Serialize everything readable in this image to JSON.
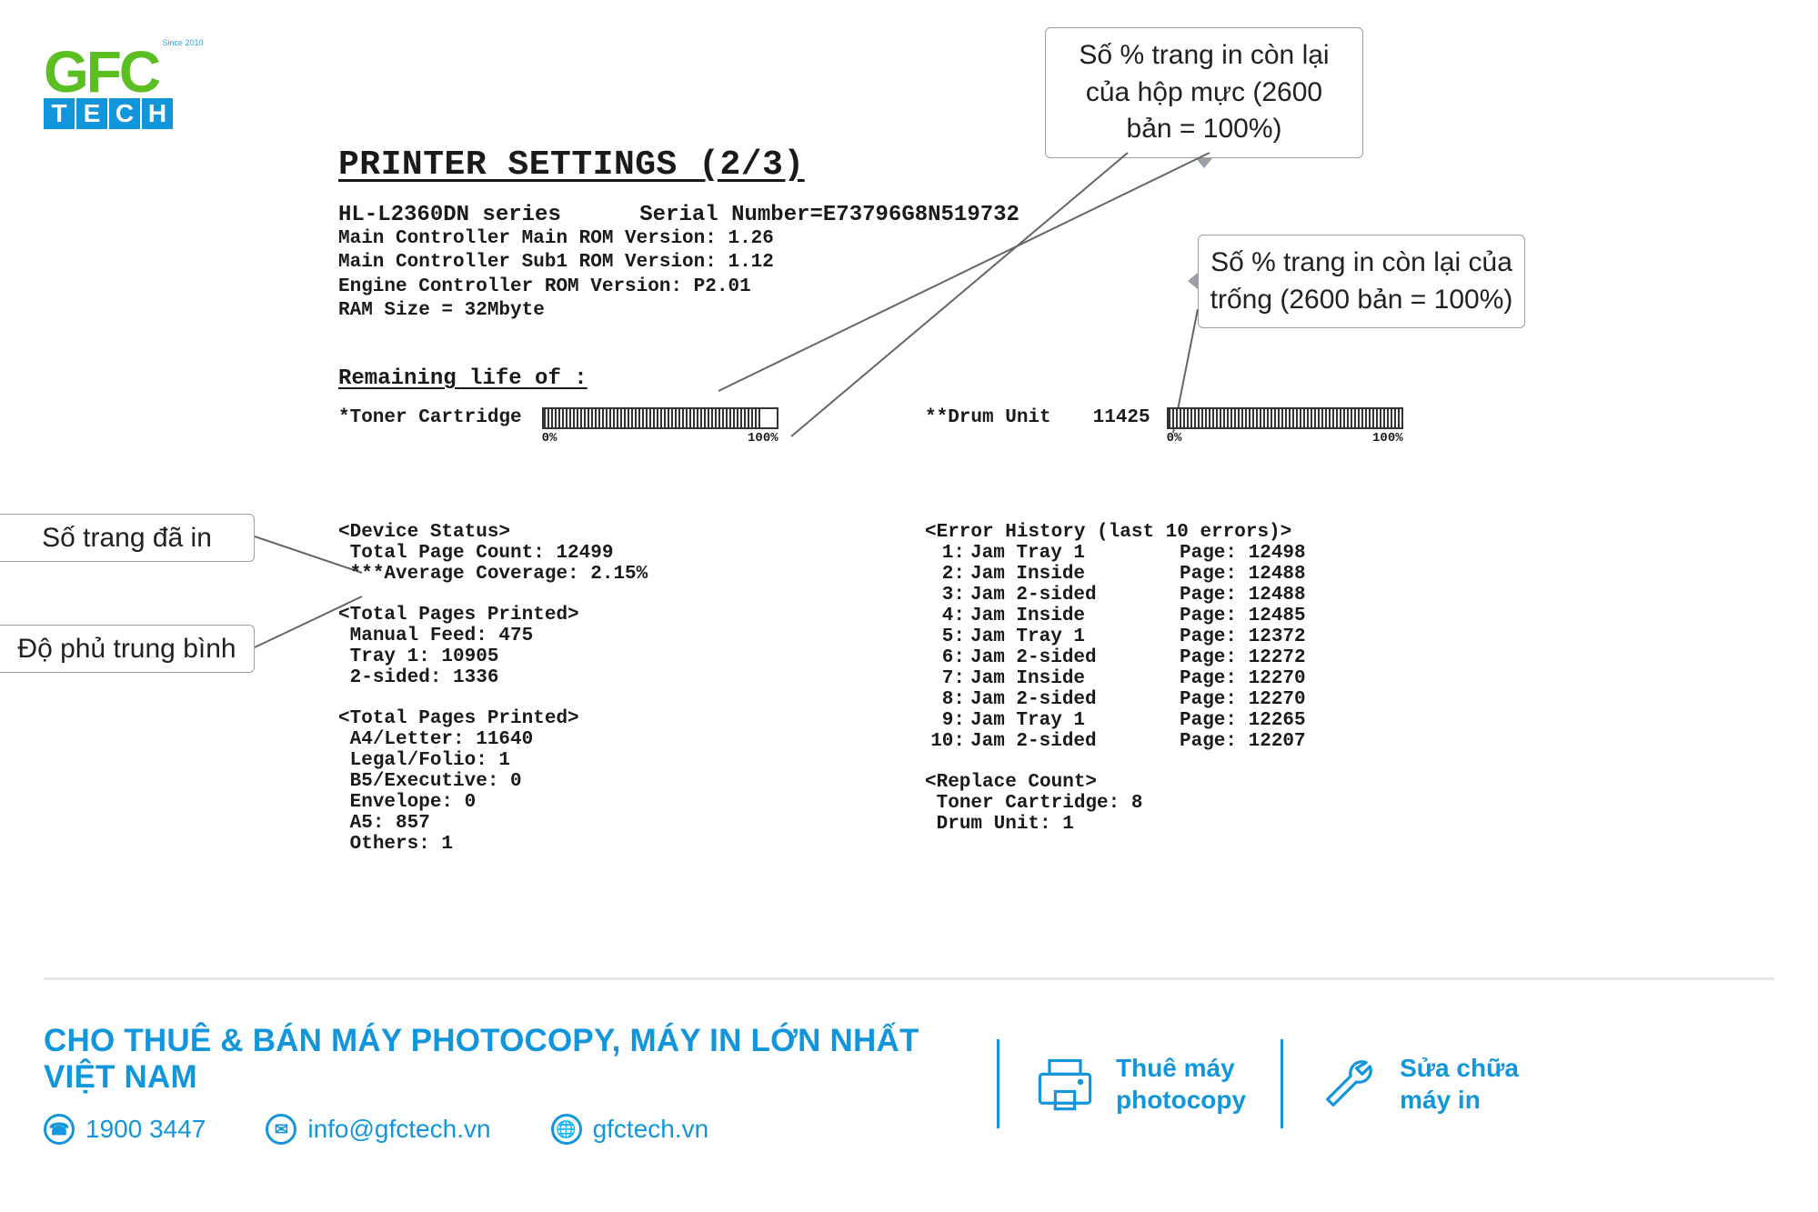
{
  "logo": {
    "since": "Since 2010",
    "tech": [
      "T",
      "E",
      "C",
      "H"
    ]
  },
  "callouts": {
    "toner": "Số % trang in còn lại của hộp mực (2600 bản = 100%)",
    "drum": "Số % trang in còn lại của trống (2600 bản = 100%)",
    "pages": "Số trang đã in",
    "cov": "Độ phủ trung bình"
  },
  "sheet": {
    "title": "PRINTER SETTINGS (2/3)",
    "model": "HL-L2360DN series",
    "serial_label": "Serial Number=",
    "serial": "E73796G8N519732",
    "fw": [
      "Main Controller Main ROM Version: 1.26",
      "Main Controller Sub1 ROM Version: 1.12",
      "Engine Controller ROM Version: P2.01",
      "RAM Size =  32Mbyte"
    ],
    "remaining_title": "Remaining life of :",
    "toner_label": "*Toner Cartridge",
    "drum_label": "**Drum Unit",
    "drum_pages": "11425",
    "toner_pct": 93,
    "drum_pct": 100,
    "tick0": "0%",
    "tick100": "100%",
    "dev_status_title": "<Device Status>",
    "dev_status": [
      "Total Page Count: 12499",
      "***Average Coverage: 2.15%"
    ],
    "tpp1_title": "<Total Pages Printed>",
    "tpp1": [
      "Manual Feed: 475",
      "Tray 1: 10905",
      "2-sided: 1336"
    ],
    "tpp2_title": "<Total Pages Printed>",
    "tpp2": [
      "A4/Letter: 11640",
      "Legal/Folio: 1",
      "B5/Executive: 0",
      "Envelope: 0",
      "A5: 857",
      "Others: 1"
    ],
    "err_title": "<Error History (last 10 errors)>",
    "errors": [
      {
        "n": "1:",
        "d": "Jam Tray 1",
        "p": "Page: 12498"
      },
      {
        "n": "2:",
        "d": "Jam Inside",
        "p": "Page: 12488"
      },
      {
        "n": "3:",
        "d": "Jam 2-sided",
        "p": "Page: 12488"
      },
      {
        "n": "4:",
        "d": "Jam Inside",
        "p": "Page: 12485"
      },
      {
        "n": "5:",
        "d": "Jam Tray 1",
        "p": "Page: 12372"
      },
      {
        "n": "6:",
        "d": "Jam 2-sided",
        "p": "Page: 12272"
      },
      {
        "n": "7:",
        "d": "Jam Inside",
        "p": "Page: 12270"
      },
      {
        "n": "8:",
        "d": "Jam 2-sided",
        "p": "Page: 12270"
      },
      {
        "n": "9:",
        "d": "Jam Tray 1",
        "p": "Page: 12265"
      },
      {
        "n": "10:",
        "d": "Jam 2-sided",
        "p": "Page: 12207"
      }
    ],
    "replace_title": "<Replace Count>",
    "replace": [
      "Toner Cartridge: 8",
      "Drum Unit: 1"
    ]
  },
  "footer": {
    "slogan": "CHO THUÊ & BÁN MÁY PHOTOCOPY, MÁY IN LỚN NHẤT VIỆT NAM",
    "phone": "1900 3447",
    "email": "info@gfctech.vn",
    "web": "gfctech.vn",
    "svc1a": "Thuê máy",
    "svc1b": "photocopy",
    "svc2a": "Sửa chữa",
    "svc2b": "máy in"
  },
  "colors": {
    "brand_blue": "#1296db",
    "brand_green": "#5bbf21",
    "callout_border": "#9aa0a6"
  }
}
